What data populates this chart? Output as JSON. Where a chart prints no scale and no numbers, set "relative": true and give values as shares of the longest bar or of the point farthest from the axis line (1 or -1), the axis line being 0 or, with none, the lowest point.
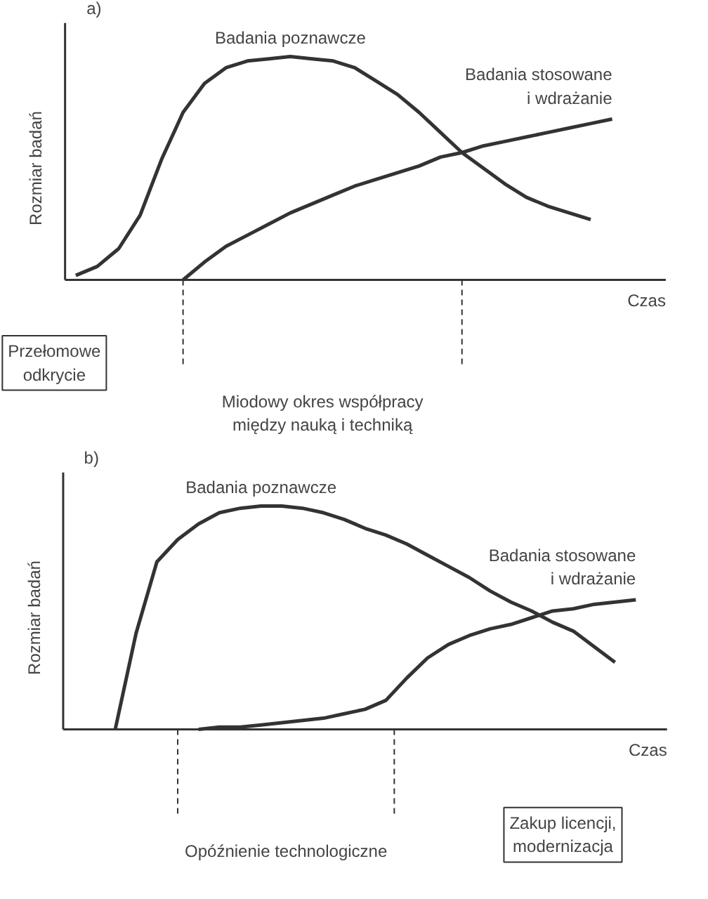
{
  "chart_data": [
    {
      "type": "line",
      "relative": true,
      "xlabel": "Czas",
      "ylabel": "Rozmiar badań",
      "grid": false,
      "marker": "none",
      "line_style": "solid",
      "categories": [
        null,
        null,
        null,
        null,
        null,
        null,
        null,
        null,
        null,
        null,
        null,
        null,
        null,
        null,
        null,
        null,
        null,
        null,
        null,
        null,
        null,
        null,
        null,
        null,
        null,
        null,
        null
      ],
      "series": [
        {
          "name": "Badania poznawcze",
          "color": "#333333",
          "values": [
            0.02,
            0.06,
            0.14,
            0.29,
            0.54,
            0.75,
            0.88,
            0.95,
            0.98,
            0.99,
            1,
            0.99,
            0.98,
            0.95,
            0.89,
            0.83,
            0.75,
            0.66,
            0.57,
            0.5,
            0.43,
            0.37,
            0.33,
            0.3,
            0.27,
            null,
            null
          ]
        },
        {
          "name": "Badania stosowane\ni wdrażanie",
          "color": "#333333",
          "values": [
            null,
            null,
            null,
            null,
            null,
            0,
            0.08,
            0.15,
            0.2,
            0.25,
            0.3,
            0.34,
            0.38,
            0.42,
            0.45,
            0.48,
            0.51,
            0.55,
            0.57,
            0.6,
            0.62,
            0.64,
            0.66,
            0.68,
            0.7,
            0.72,
            null
          ]
        }
      ],
      "annotations": [
        "a)",
        "Przełomowe\nodkrycie",
        "Miodowy okres współpracy\nmiędzy nauką i techniką"
      ]
    },
    {
      "type": "line",
      "relative": true,
      "xlabel": "Czas",
      "ylabel": "Rozmiar badań",
      "grid": false,
      "marker": "none",
      "line_style": "solid",
      "categories": [
        null,
        null,
        null,
        null,
        null,
        null,
        null,
        null,
        null,
        null,
        null,
        null,
        null,
        null,
        null,
        null,
        null,
        null,
        null,
        null,
        null,
        null,
        null,
        null,
        null,
        null,
        null,
        null
      ],
      "series": [
        {
          "name": "Badania poznawcze",
          "color": "#333333",
          "values": [
            null,
            null,
            0,
            0.43,
            0.75,
            0.85,
            0.92,
            0.97,
            0.99,
            1,
            1,
            0.99,
            0.97,
            0.94,
            0.9,
            0.87,
            0.83,
            0.78,
            0.73,
            0.68,
            0.62,
            0.57,
            0.53,
            0.48,
            0.44,
            0.37,
            0.3,
            null
          ]
        },
        {
          "name": "Badania stosowane\ni wdrażanie",
          "color": "#333333",
          "values": [
            null,
            null,
            null,
            null,
            null,
            null,
            0,
            0.01,
            0.01,
            0.02,
            0.03,
            0.04,
            0.05,
            0.07,
            0.09,
            0.13,
            0.23,
            0.32,
            0.38,
            0.42,
            0.45,
            0.47,
            0.5,
            0.53,
            0.54,
            0.56,
            0.57,
            0.58
          ]
        }
      ],
      "annotations": [
        "b)",
        "Zakup licencji,\nmodernizacja",
        "Opóźnienie technologiczne"
      ]
    }
  ]
}
